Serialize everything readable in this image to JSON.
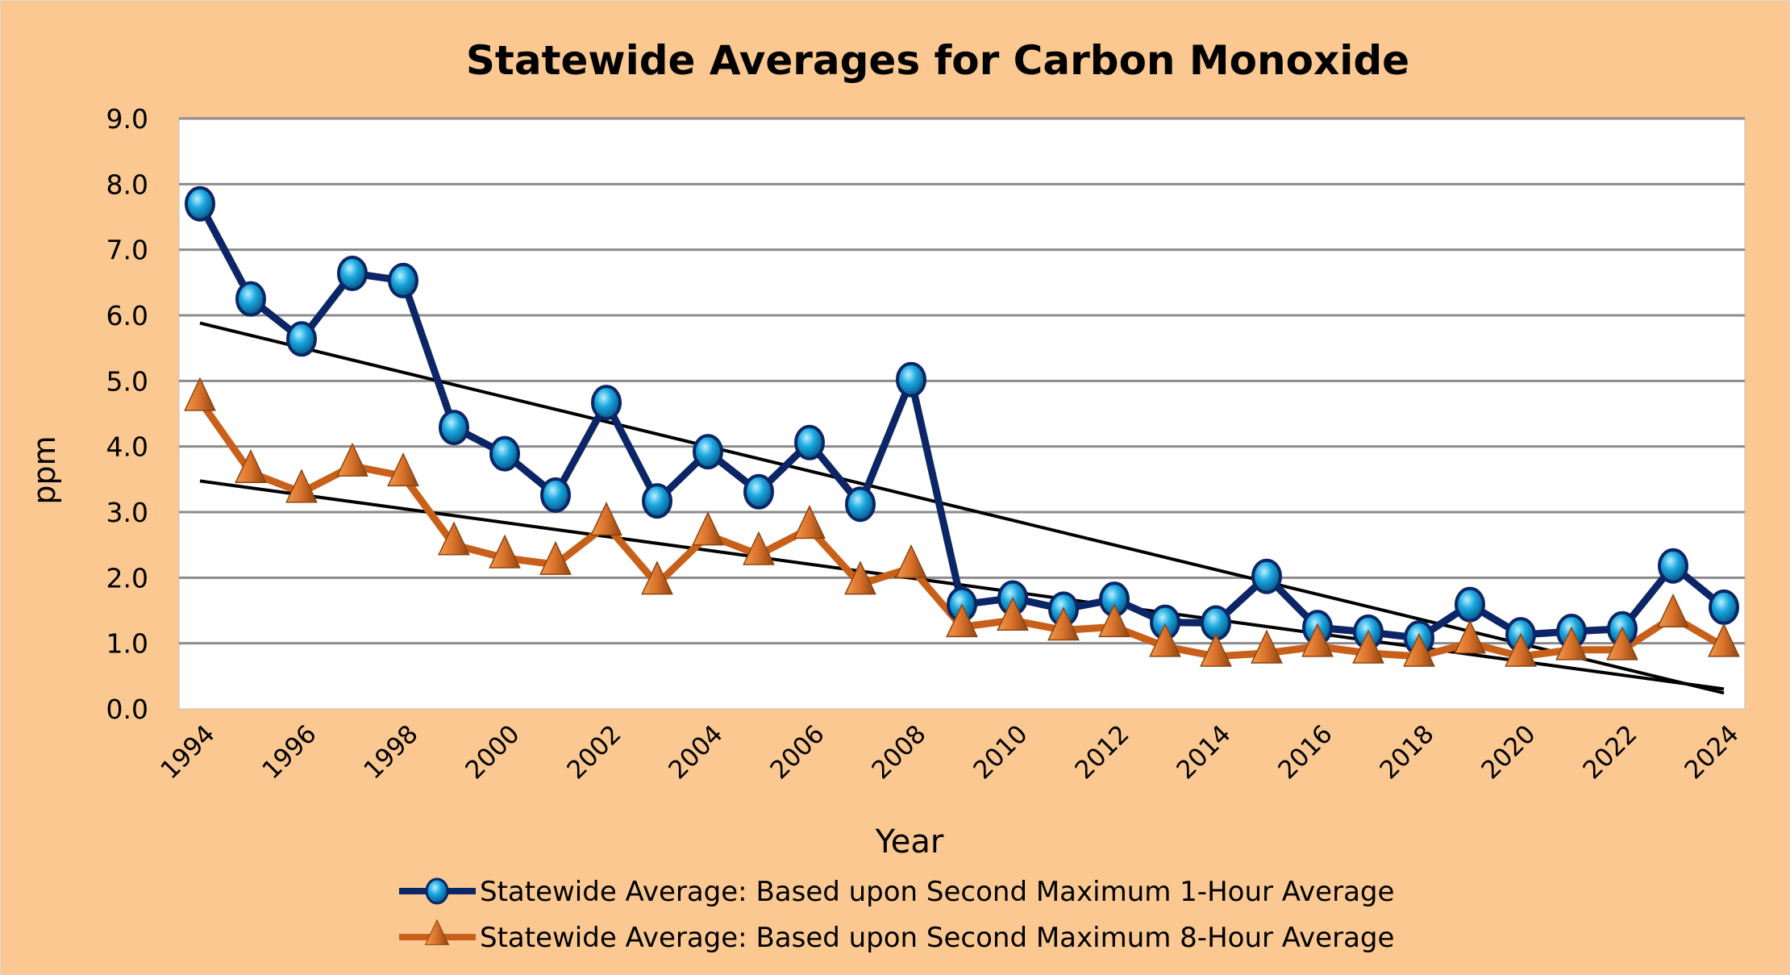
{
  "chart_data": {
    "type": "line",
    "title": "Statewide Averages for Carbon Monoxide",
    "xlabel": "Year",
    "ylabel": "ppm",
    "ylim": [
      0,
      9
    ],
    "yticks": [
      "0.0",
      "1.0",
      "2.0",
      "3.0",
      "4.0",
      "5.0",
      "6.0",
      "7.0",
      "8.0",
      "9.0"
    ],
    "xticks": [
      "1994",
      "1996",
      "1998",
      "2000",
      "2002",
      "2004",
      "2006",
      "2008",
      "2010",
      "2012",
      "2014",
      "2016",
      "2018",
      "2020",
      "2022",
      "2024"
    ],
    "grid": "horizontal",
    "legend_position": "bottom",
    "trendlines": "linear, black",
    "x": [
      1994,
      1995,
      1996,
      1997,
      1998,
      1999,
      2000,
      2001,
      2002,
      2003,
      2004,
      2005,
      2006,
      2007,
      2008,
      2009,
      2010,
      2011,
      2012,
      2013,
      2014,
      2015,
      2016,
      2017,
      2018,
      2019,
      2020,
      2021,
      2022,
      2023,
      2024
    ],
    "series": [
      {
        "name": "Statewide Average: Based upon Second Maximum 1-Hour Average",
        "color": "#0B2566",
        "marker": "circle",
        "marker_color": "#1AA6DF",
        "values": [
          7.7,
          6.25,
          5.64,
          6.64,
          6.53,
          4.29,
          3.89,
          3.26,
          4.67,
          3.17,
          3.92,
          3.31,
          4.06,
          3.12,
          5.02,
          1.59,
          1.69,
          1.52,
          1.67,
          1.32,
          1.31,
          2.02,
          1.24,
          1.17,
          1.08,
          1.59,
          1.13,
          1.18,
          1.22,
          2.18,
          1.55
        ]
      },
      {
        "name": "Statewide Average: Based upon Second Maximum 8-Hour Average",
        "color": "#C8601A",
        "marker": "triangle",
        "marker_color": "#E07A30",
        "values": [
          4.7,
          3.6,
          3.3,
          3.7,
          3.55,
          2.5,
          2.3,
          2.2,
          2.8,
          1.9,
          2.65,
          2.35,
          2.75,
          1.9,
          2.15,
          1.25,
          1.35,
          1.2,
          1.25,
          0.95,
          0.8,
          0.85,
          0.95,
          0.85,
          0.8,
          1.0,
          0.8,
          0.9,
          0.9,
          1.4,
          0.95
        ]
      }
    ]
  }
}
